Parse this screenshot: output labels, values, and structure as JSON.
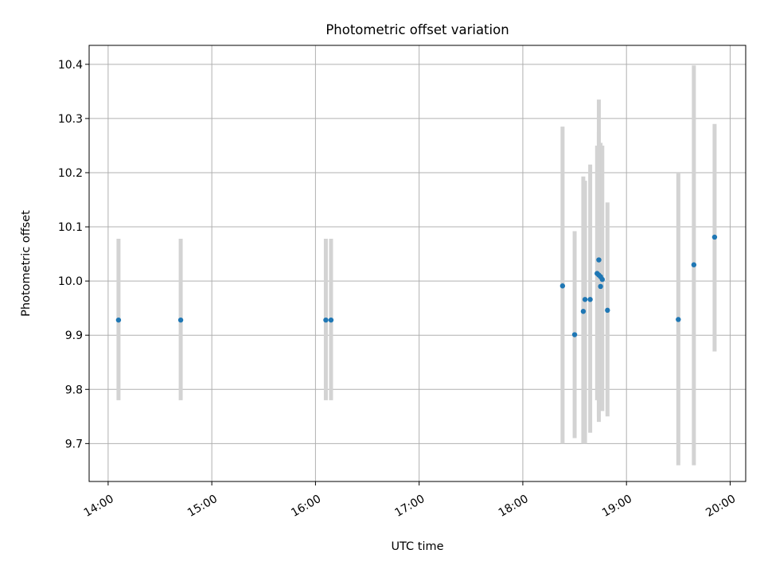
{
  "chart_data": {
    "type": "scatter",
    "title": "Photometric offset variation",
    "xlabel": "UTC time",
    "ylabel": "Photometric offset",
    "x_ticks": [
      "14:00",
      "15:00",
      "16:00",
      "17:00",
      "18:00",
      "19:00",
      "20:00"
    ],
    "y_ticks": [
      "9.7",
      "9.8",
      "9.9",
      "10.0",
      "10.1",
      "10.2",
      "10.3",
      "10.4"
    ],
    "xlim": [
      "13:49",
      "20:09"
    ],
    "ylim": [
      9.63,
      10.435
    ],
    "grid": true,
    "legend": "none",
    "colors": {
      "points": "#1f77b4",
      "errorbars": "#d3d3d3",
      "grid": "#b0b0b0"
    },
    "series": [
      {
        "points": [
          {
            "x": "14:06",
            "y": 9.928,
            "ylow": 9.78,
            "yhigh": 10.078
          },
          {
            "x": "14:42",
            "y": 9.928,
            "ylow": 9.78,
            "yhigh": 10.078
          },
          {
            "x": "16:06",
            "y": 9.928,
            "ylow": 9.78,
            "yhigh": 10.078
          },
          {
            "x": "16:09",
            "y": 9.928,
            "ylow": 9.78,
            "yhigh": 10.078
          },
          {
            "x": "18:23",
            "y": 9.991,
            "ylow": 9.7,
            "yhigh": 10.285
          },
          {
            "x": "18:30",
            "y": 9.901,
            "ylow": 9.71,
            "yhigh": 10.092
          },
          {
            "x": "18:35",
            "y": 9.944,
            "ylow": 9.7,
            "yhigh": 10.193
          },
          {
            "x": "18:36",
            "y": 9.966,
            "ylow": 9.7,
            "yhigh": 10.185
          },
          {
            "x": "18:39",
            "y": 9.966,
            "ylow": 9.72,
            "yhigh": 10.215
          },
          {
            "x": "18:43",
            "y": 10.014,
            "ylow": 9.78,
            "yhigh": 10.25
          },
          {
            "x": "18:44",
            "y": 10.011,
            "ylow": 9.75,
            "yhigh": 10.275
          },
          {
            "x": "18:44",
            "y": 10.039,
            "ylow": 9.74,
            "yhigh": 10.335
          },
          {
            "x": "18:45",
            "y": 9.99,
            "ylow": 9.76,
            "yhigh": 10.255
          },
          {
            "x": "18:45",
            "y": 10.008,
            "ylow": 9.76,
            "yhigh": 10.245
          },
          {
            "x": "18:46",
            "y": 10.003,
            "ylow": 9.76,
            "yhigh": 10.25
          },
          {
            "x": "18:49",
            "y": 9.946,
            "ylow": 9.75,
            "yhigh": 10.145
          },
          {
            "x": "19:30",
            "y": 9.929,
            "ylow": 9.66,
            "yhigh": 10.2
          },
          {
            "x": "19:39",
            "y": 10.03,
            "ylow": 9.66,
            "yhigh": 10.398
          },
          {
            "x": "19:51",
            "y": 10.081,
            "ylow": 9.87,
            "yhigh": 10.29
          }
        ]
      }
    ]
  }
}
